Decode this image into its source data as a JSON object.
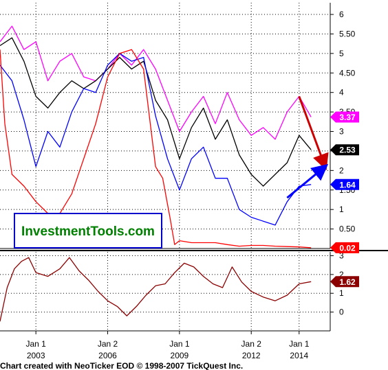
{
  "chart_data": [
    {
      "type": "line",
      "panel": "upper",
      "ylim": [
        0,
        6.3
      ],
      "yticks": [
        {
          "value": 0.5,
          "label": "0.50"
        },
        {
          "value": 1,
          "label": "1"
        },
        {
          "value": 1.5,
          "label": "1.50"
        },
        {
          "value": 2,
          "label": "2"
        },
        {
          "value": 2.5,
          "label": "2.50"
        },
        {
          "value": 3,
          "label": "3"
        },
        {
          "value": 3.5,
          "label": "3.50"
        },
        {
          "value": 4,
          "label": "4"
        },
        {
          "value": 4.5,
          "label": "4.50"
        },
        {
          "value": 5,
          "label": "5"
        },
        {
          "value": 5.5,
          "label": "5.50"
        },
        {
          "value": 6,
          "label": "6"
        }
      ],
      "grid": true,
      "series": [
        {
          "color": "#ff00ff",
          "last_label": "3.37",
          "points": [
            [
              2001.5,
              5.3
            ],
            [
              2002.0,
              5.7
            ],
            [
              2002.5,
              5.1
            ],
            [
              2003.0,
              5.3
            ],
            [
              2003.5,
              4.3
            ],
            [
              2004.0,
              4.8
            ],
            [
              2004.5,
              5.0
            ],
            [
              2005.0,
              4.4
            ],
            [
              2005.5,
              4.3
            ],
            [
              2006.0,
              4.6
            ],
            [
              2006.5,
              5.0
            ],
            [
              2007.0,
              4.7
            ],
            [
              2007.5,
              5.1
            ],
            [
              2008.0,
              4.6
            ],
            [
              2008.5,
              3.8
            ],
            [
              2009.0,
              3.0
            ],
            [
              2009.5,
              3.5
            ],
            [
              2010.0,
              3.9
            ],
            [
              2010.5,
              3.2
            ],
            [
              2011.0,
              4.0
            ],
            [
              2011.5,
              3.3
            ],
            [
              2012.0,
              2.9
            ],
            [
              2012.5,
              3.1
            ],
            [
              2013.0,
              2.8
            ],
            [
              2013.5,
              3.5
            ],
            [
              2014.0,
              3.9
            ],
            [
              2014.5,
              3.37
            ]
          ]
        },
        {
          "color": "#000000",
          "last_label": "2.53",
          "points": [
            [
              2001.5,
              5.2
            ],
            [
              2002.0,
              5.4
            ],
            [
              2002.5,
              4.8
            ],
            [
              2003.0,
              3.9
            ],
            [
              2003.5,
              3.6
            ],
            [
              2004.0,
              4.0
            ],
            [
              2004.5,
              4.3
            ],
            [
              2005.0,
              4.1
            ],
            [
              2005.5,
              4.3
            ],
            [
              2006.0,
              4.6
            ],
            [
              2006.5,
              4.9
            ],
            [
              2007.0,
              4.6
            ],
            [
              2007.5,
              4.8
            ],
            [
              2008.0,
              3.8
            ],
            [
              2008.5,
              3.3
            ],
            [
              2009.0,
              2.3
            ],
            [
              2009.5,
              3.1
            ],
            [
              2010.0,
              3.6
            ],
            [
              2010.5,
              2.8
            ],
            [
              2011.0,
              3.3
            ],
            [
              2011.5,
              2.4
            ],
            [
              2012.0,
              1.9
            ],
            [
              2012.5,
              1.6
            ],
            [
              2013.0,
              1.9
            ],
            [
              2013.5,
              2.2
            ],
            [
              2014.0,
              2.9
            ],
            [
              2014.5,
              2.53
            ]
          ]
        },
        {
          "color": "#0000ff",
          "last_label": "1.64",
          "points": [
            [
              2001.5,
              4.7
            ],
            [
              2002.0,
              4.3
            ],
            [
              2002.5,
              3.3
            ],
            [
              2003.0,
              2.1
            ],
            [
              2003.5,
              3.0
            ],
            [
              2004.0,
              2.6
            ],
            [
              2004.5,
              3.5
            ],
            [
              2005.0,
              4.1
            ],
            [
              2005.5,
              4.0
            ],
            [
              2006.0,
              4.7
            ],
            [
              2006.5,
              5.0
            ],
            [
              2007.0,
              4.8
            ],
            [
              2007.5,
              4.9
            ],
            [
              2008.0,
              3.4
            ],
            [
              2008.5,
              2.3
            ],
            [
              2009.0,
              1.5
            ],
            [
              2009.5,
              2.3
            ],
            [
              2010.0,
              2.6
            ],
            [
              2010.5,
              1.8
            ],
            [
              2011.0,
              1.8
            ],
            [
              2011.5,
              1.0
            ],
            [
              2012.0,
              0.8
            ],
            [
              2012.5,
              0.7
            ],
            [
              2013.0,
              0.6
            ],
            [
              2013.5,
              1.2
            ],
            [
              2014.0,
              1.6
            ],
            [
              2014.5,
              1.64
            ]
          ]
        },
        {
          "color": "#ff0000",
          "last_label": "0.02",
          "points": [
            [
              2001.5,
              5.1
            ],
            [
              2001.7,
              3.2
            ],
            [
              2002.0,
              1.9
            ],
            [
              2002.5,
              1.6
            ],
            [
              2003.0,
              1.2
            ],
            [
              2003.5,
              0.9
            ],
            [
              2004.0,
              0.9
            ],
            [
              2004.5,
              1.4
            ],
            [
              2005.0,
              2.3
            ],
            [
              2005.5,
              3.2
            ],
            [
              2006.0,
              4.4
            ],
            [
              2006.5,
              5.0
            ],
            [
              2007.0,
              5.1
            ],
            [
              2007.5,
              4.6
            ],
            [
              2008.0,
              2.1
            ],
            [
              2008.3,
              1.8
            ],
            [
              2008.6,
              0.8
            ],
            [
              2008.8,
              0.1
            ],
            [
              2009.0,
              0.2
            ],
            [
              2009.5,
              0.15
            ],
            [
              2010.0,
              0.15
            ],
            [
              2010.5,
              0.15
            ],
            [
              2011.0,
              0.1
            ],
            [
              2011.5,
              0.06
            ],
            [
              2012.0,
              0.08
            ],
            [
              2012.5,
              0.08
            ],
            [
              2013.0,
              0.06
            ],
            [
              2013.5,
              0.05
            ],
            [
              2014.0,
              0.04
            ],
            [
              2014.5,
              0.02
            ]
          ]
        }
      ]
    },
    {
      "type": "line",
      "panel": "lower",
      "ylim": [
        -1,
        3.2
      ],
      "yticks": [
        {
          "value": 0,
          "label": "0"
        },
        {
          "value": 1,
          "label": "1"
        },
        {
          "value": 2,
          "label": "2"
        },
        {
          "value": 3,
          "label": "3"
        }
      ],
      "grid": true,
      "series": [
        {
          "color": "#8b0000",
          "last_label": "1.62",
          "points": [
            [
              2001.5,
              -0.5
            ],
            [
              2001.8,
              1.3
            ],
            [
              2002.1,
              2.3
            ],
            [
              2002.4,
              2.7
            ],
            [
              2002.7,
              2.9
            ],
            [
              2003.0,
              2.1
            ],
            [
              2003.5,
              1.9
            ],
            [
              2004.0,
              2.3
            ],
            [
              2004.4,
              2.9
            ],
            [
              2004.8,
              2.2
            ],
            [
              2005.2,
              1.7
            ],
            [
              2005.6,
              1.1
            ],
            [
              2006.0,
              0.6
            ],
            [
              2006.4,
              0.3
            ],
            [
              2006.8,
              -0.2
            ],
            [
              2007.2,
              0.3
            ],
            [
              2007.6,
              0.9
            ],
            [
              2008.0,
              1.4
            ],
            [
              2008.4,
              1.5
            ],
            [
              2008.8,
              2.1
            ],
            [
              2009.2,
              2.6
            ],
            [
              2009.6,
              2.4
            ],
            [
              2010.0,
              1.9
            ],
            [
              2010.4,
              1.5
            ],
            [
              2010.8,
              1.3
            ],
            [
              2011.2,
              2.4
            ],
            [
              2011.6,
              1.6
            ],
            [
              2012.0,
              1.1
            ],
            [
              2012.5,
              0.8
            ],
            [
              2013.0,
              0.6
            ],
            [
              2013.5,
              0.9
            ],
            [
              2014.0,
              1.5
            ],
            [
              2014.5,
              1.62
            ]
          ]
        }
      ]
    }
  ],
  "x_axis": {
    "xlim": [
      2001.5,
      2015.3
    ],
    "ticks": [
      {
        "value": 2003.0,
        "line1": "Jan 1",
        "line2": "2003"
      },
      {
        "value": 2006.0,
        "line1": "Jan 2",
        "line2": "2006"
      },
      {
        "value": 2009.0,
        "line1": "Jan 1",
        "line2": "2009"
      },
      {
        "value": 2012.0,
        "line1": "Jan 2",
        "line2": "2012"
      },
      {
        "value": 2014.0,
        "line1": "Jan 1",
        "line2": "2014"
      }
    ]
  },
  "brand_box": {
    "text": "InvestmentTools.com",
    "text_color": "#008000",
    "border_color": "#0000cc"
  },
  "credit": "Chart created with NeoTicker EOD © 1998-2007 TickQuest Inc.",
  "arrows": [
    {
      "color": "#cc0000",
      "from": [
        2014.0,
        3.9
      ],
      "to": [
        2015.2,
        2.1
      ]
    },
    {
      "color": "#0000ff",
      "from": [
        2013.5,
        1.3
      ],
      "to": [
        2015.2,
        2.1
      ]
    }
  ]
}
